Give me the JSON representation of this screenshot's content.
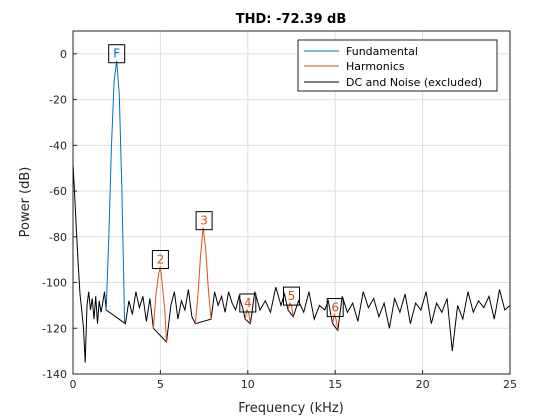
{
  "chart_data": {
    "type": "line",
    "title": "THD: -72.39 dB",
    "xlabel": "Frequency (kHz)",
    "ylabel": "Power (dB)",
    "xlim": [
      0,
      25
    ],
    "ylim": [
      -140,
      10
    ],
    "xticks": [
      0,
      5,
      10,
      15,
      20,
      25
    ],
    "yticks": [
      0,
      -20,
      -40,
      -60,
      -80,
      -100,
      -120,
      -140
    ],
    "grid": true,
    "legend_position": "top-right",
    "series": [
      {
        "name": "Fundamental",
        "color": "#0072BD",
        "x": [
          1.9,
          2.05,
          2.2,
          2.35,
          2.5,
          2.65,
          2.8,
          2.95
        ],
        "y": [
          -112,
          -80,
          -40,
          -12,
          -3,
          -18,
          -60,
          -118
        ]
      },
      {
        "name": "Harmonics",
        "color": "#D95319",
        "segments": [
          {
            "x": [
              4.6,
              4.75,
              4.9,
              5.0,
              5.1,
              5.25,
              5.35
            ],
            "y": [
              -120,
              -105,
              -96,
              -93,
              -100,
              -112,
              -126
            ]
          },
          {
            "x": [
              7.0,
              7.15,
              7.3,
              7.45,
              7.6,
              7.75,
              7.9
            ],
            "y": [
              -118,
              -105,
              -88,
              -76,
              -86,
              -104,
              -116
            ]
          },
          {
            "x": [
              9.85,
              9.95,
              10.05,
              10.15
            ],
            "y": [
              -116,
              -112,
              -113,
              -118
            ]
          },
          {
            "x": [
              12.3,
              12.4,
              12.5,
              12.6
            ],
            "y": [
              -112,
              -109,
              -110,
              -115
            ]
          },
          {
            "x": [
              14.85,
              14.95,
              15.05,
              15.15
            ],
            "y": [
              -118,
              -114,
              -116,
              -121
            ]
          }
        ]
      },
      {
        "name": "DC and Noise (excluded)",
        "color": "#000000",
        "x": [
          0,
          0.1,
          0.2,
          0.3,
          0.4,
          0.5,
          0.6,
          0.7,
          0.8,
          0.9,
          1.0,
          1.1,
          1.2,
          1.3,
          1.4,
          1.5,
          1.6,
          1.7,
          1.8,
          1.9,
          3.0,
          3.2,
          3.4,
          3.6,
          3.8,
          4.0,
          4.2,
          4.4,
          4.6,
          5.35,
          5.6,
          5.8,
          6.0,
          6.2,
          6.4,
          6.6,
          6.8,
          7.0,
          7.9,
          8.1,
          8.3,
          8.5,
          8.7,
          8.9,
          9.1,
          9.3,
          9.5,
          9.7,
          9.85,
          10.15,
          10.4,
          10.7,
          11.0,
          11.3,
          11.6,
          11.9,
          12.1,
          12.3,
          12.6,
          12.9,
          13.2,
          13.5,
          13.8,
          14.1,
          14.4,
          14.6,
          14.85,
          15.15,
          15.4,
          15.7,
          16.0,
          16.3,
          16.6,
          16.9,
          17.2,
          17.5,
          17.8,
          18.1,
          18.4,
          18.7,
          19.0,
          19.3,
          19.6,
          19.9,
          20.2,
          20.5,
          20.8,
          21.1,
          21.4,
          21.7,
          22.0,
          22.3,
          22.6,
          22.9,
          23.2,
          23.5,
          23.8,
          24.1,
          24.4,
          24.7,
          25.0
        ],
        "y": [
          -48,
          -62,
          -78,
          -92,
          -105,
          -112,
          -120,
          -135,
          -110,
          -104,
          -112,
          -107,
          -116,
          -106,
          -118,
          -108,
          -113,
          -109,
          -104,
          -112,
          -118,
          -108,
          -114,
          -104,
          -111,
          -106,
          -117,
          -107,
          -120,
          -126,
          -110,
          -104,
          -116,
          -108,
          -112,
          -103,
          -115,
          -118,
          -116,
          -104,
          -110,
          -106,
          -113,
          -104,
          -109,
          -112,
          -106,
          -111,
          -116,
          -118,
          -104,
          -112,
          -108,
          -113,
          -102,
          -110,
          -105,
          -112,
          -115,
          -108,
          -113,
          -104,
          -116,
          -110,
          -112,
          -108,
          -118,
          -121,
          -106,
          -113,
          -109,
          -117,
          -104,
          -111,
          -107,
          -115,
          -109,
          -120,
          -107,
          -113,
          -105,
          -118,
          -109,
          -112,
          -104,
          -118,
          -109,
          -113,
          -107,
          -130,
          -110,
          -116,
          -104,
          -113,
          -108,
          -111,
          -106,
          -116,
          -103,
          -112,
          -110
        ]
      }
    ],
    "markers": [
      {
        "label": "F",
        "x": 2.5,
        "y": -3,
        "color": "#0072BD"
      },
      {
        "label": "2",
        "x": 5.0,
        "y": -93,
        "color": "#D95319"
      },
      {
        "label": "3",
        "x": 7.5,
        "y": -76,
        "color": "#D95319"
      },
      {
        "label": "4",
        "x": 10.0,
        "y": -112,
        "color": "#D95319"
      },
      {
        "label": "5",
        "x": 12.5,
        "y": -109,
        "color": "#D95319"
      },
      {
        "label": "6",
        "x": 15.0,
        "y": -114,
        "color": "#D95319"
      }
    ]
  }
}
